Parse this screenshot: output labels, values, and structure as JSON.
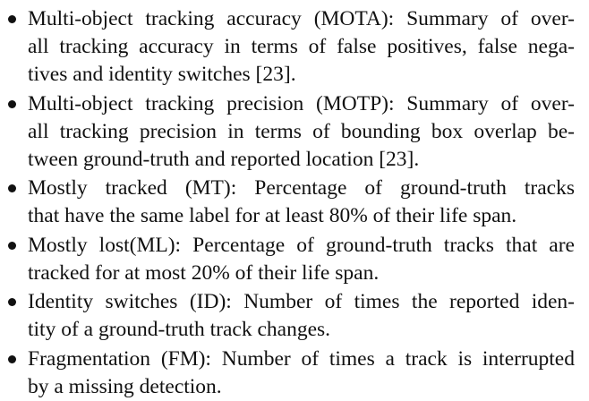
{
  "items": [
    {
      "lines": [
        "Multi-object tracking accuracy (MOTA): Summary of over-",
        "all tracking accuracy in terms of false positives, false nega-",
        "tives and identity switches [23]."
      ]
    },
    {
      "lines": [
        "Multi-object tracking precision (MOTP): Summary of over-",
        "all tracking precision in terms of bounding box overlap be-",
        "tween ground-truth and reported location [23]."
      ]
    },
    {
      "lines": [
        "Mostly tracked (MT): Percentage of ground-truth tracks",
        "that have the same label for at least 80% of their life span."
      ]
    },
    {
      "lines": [
        "Mostly lost(ML): Percentage of ground-truth tracks that are",
        "tracked for at most 20% of their life span."
      ]
    },
    {
      "lines": [
        "Identity switches (ID): Number of times the reported iden-",
        "tity of a ground-truth track changes."
      ]
    },
    {
      "lines": [
        "Fragmentation (FM): Number of times a track is interrupted",
        "by a missing detection."
      ]
    }
  ]
}
